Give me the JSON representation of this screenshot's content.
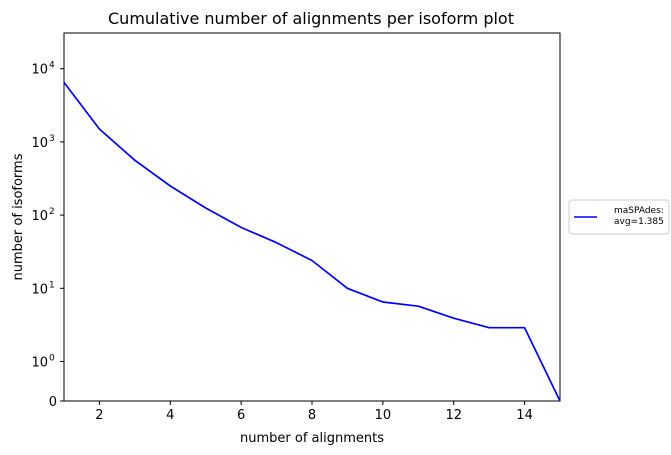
{
  "chart_data": {
    "type": "line",
    "title": "Cumulative number of alignments per isoform plot",
    "xlabel": "number of alignments",
    "ylabel": "number of isoforms",
    "xlim": [
      1,
      15
    ],
    "ylim": [
      0,
      16000
    ],
    "yscale": "symlog",
    "grid": false,
    "legend_position": "outside-right",
    "x_ticks": [
      2,
      4,
      6,
      8,
      10,
      12,
      14
    ],
    "y_ticks": [
      {
        "value": 0,
        "label": "0"
      },
      {
        "value": 1,
        "label": "10",
        "exp": "0"
      },
      {
        "value": 10,
        "label": "10",
        "exp": "1"
      },
      {
        "value": 100,
        "label": "10",
        "exp": "2"
      },
      {
        "value": 1000,
        "label": "10",
        "exp": "3"
      },
      {
        "value": 10000,
        "label": "10",
        "exp": "4"
      }
    ],
    "series": [
      {
        "name": "maSPAdes:",
        "name_line2": "avg=1.385",
        "color": "#0000ff",
        "x": [
          1,
          2,
          3,
          4,
          5,
          6,
          7,
          8,
          9,
          10,
          11,
          12,
          13,
          14,
          15
        ],
        "y": [
          6500,
          1500,
          560,
          250,
          125,
          68,
          42,
          24,
          10,
          6.5,
          5.7,
          3.9,
          2.9,
          2.9,
          0
        ]
      }
    ]
  }
}
